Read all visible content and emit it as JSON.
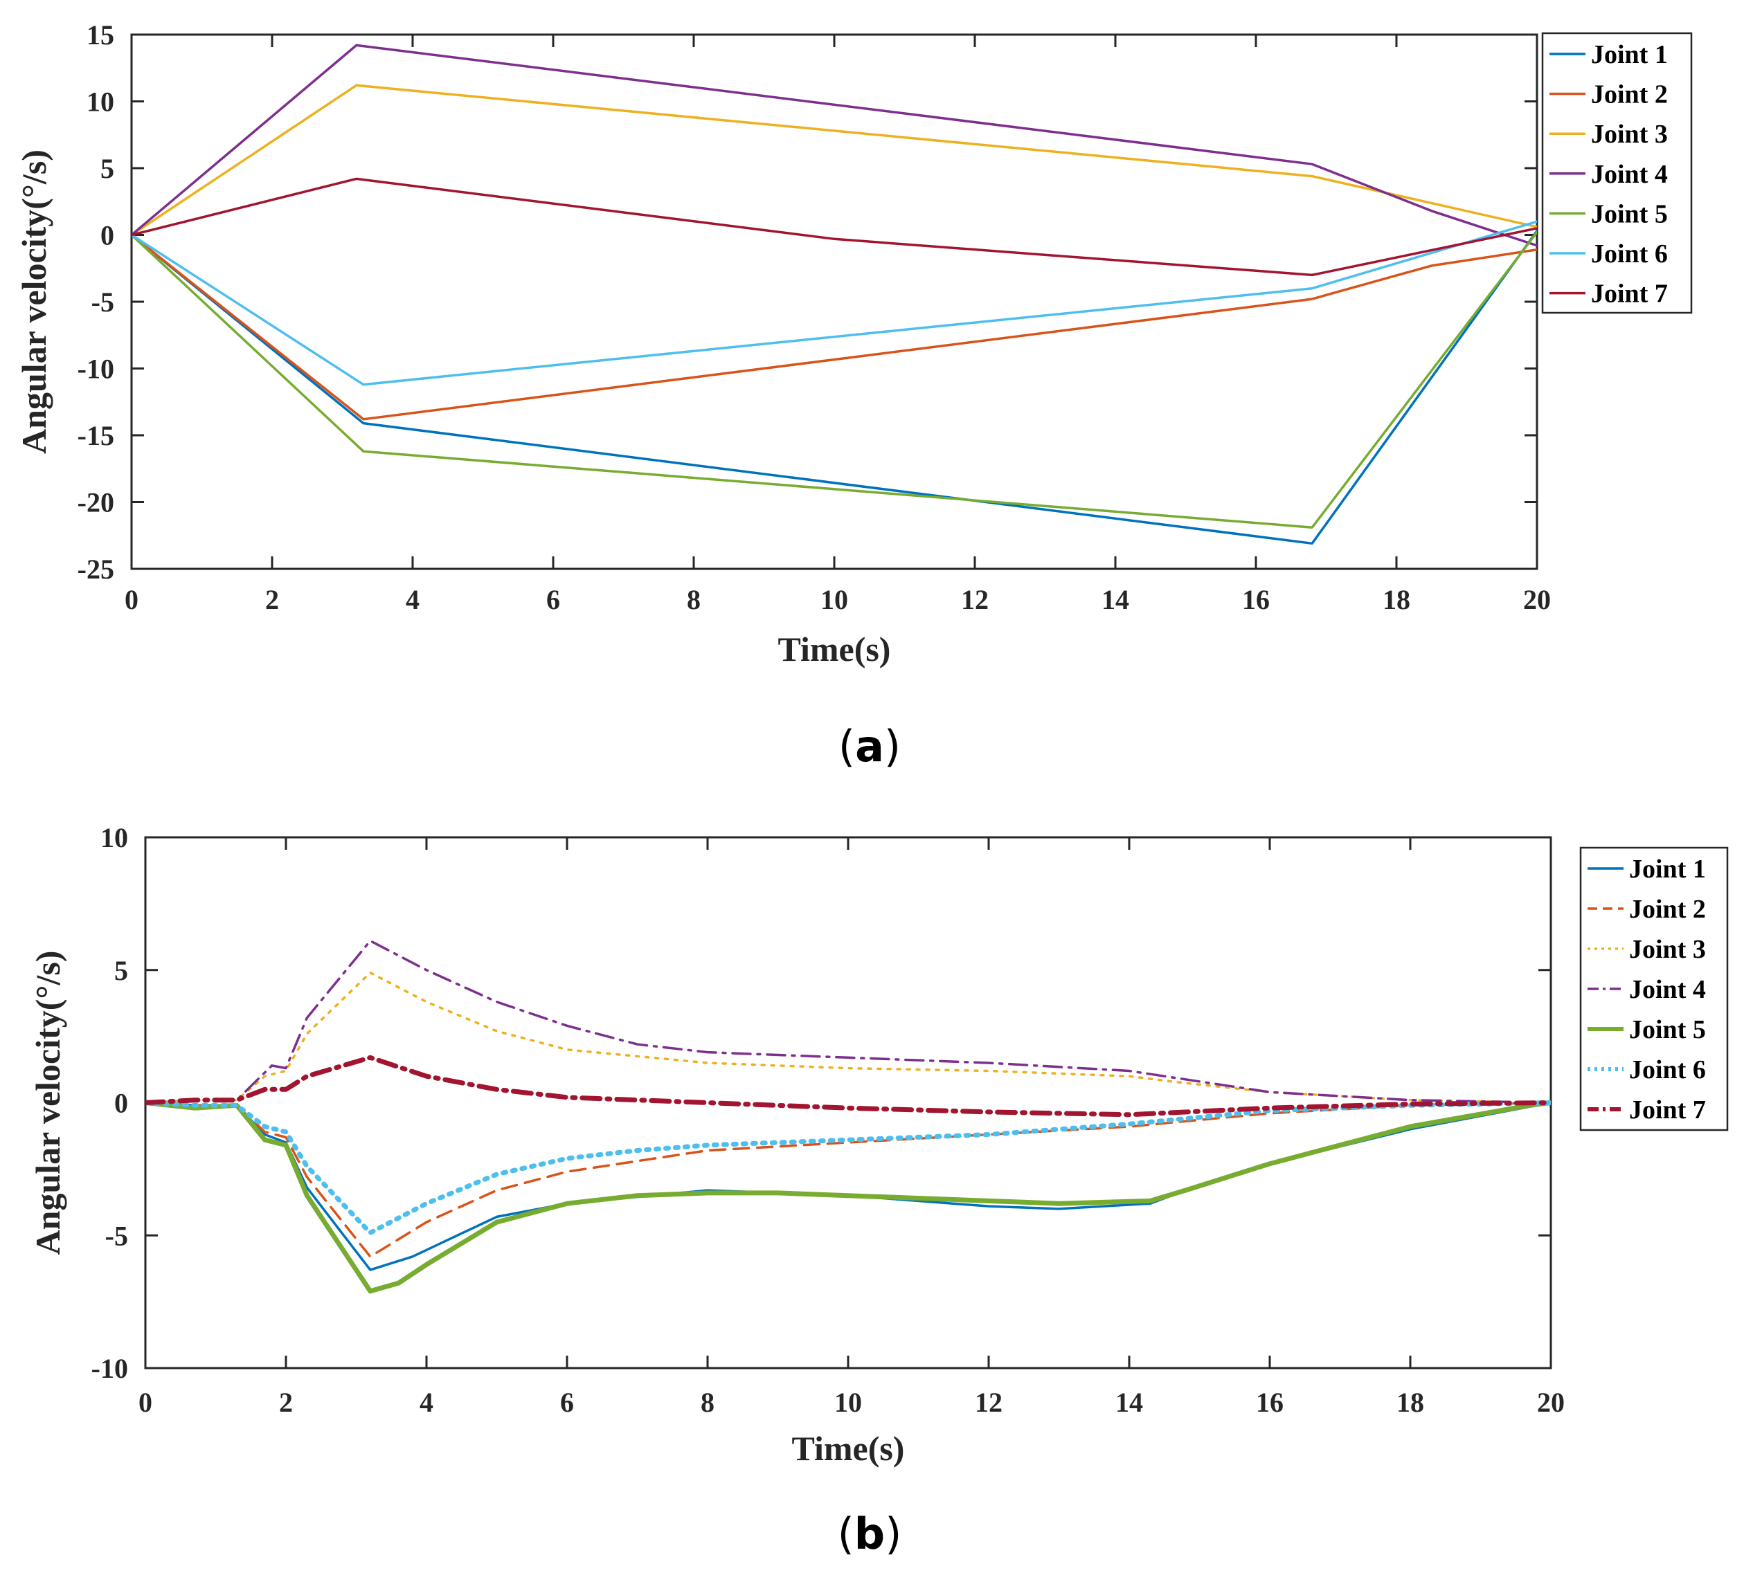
{
  "chart_data": [
    {
      "type": "line",
      "caption": "a",
      "title": "",
      "xlabel": "Time(s)",
      "ylabel": "Angular velocity(°/s)",
      "xlim": [
        0,
        20
      ],
      "ylim": [
        -25,
        15
      ],
      "xticks": [
        0,
        2,
        4,
        6,
        8,
        10,
        12,
        14,
        16,
        18,
        20
      ],
      "yticks": [
        -25,
        -20,
        -15,
        -10,
        -5,
        0,
        5,
        10,
        15
      ],
      "xtick_labels": [
        "0",
        "2",
        "4",
        "6",
        "8",
        "10",
        "12",
        "14",
        "16",
        "18",
        "20"
      ],
      "ytick_labels": [
        "-25",
        "-20",
        "-15",
        "-10",
        "-5",
        "0",
        "5",
        "10",
        "15"
      ],
      "grid": false,
      "legend_position": "outside-top-right",
      "series": [
        {
          "name": "Joint 1",
          "color": "#0072BD",
          "style": "solid",
          "width": 3.5,
          "x": [
            0,
            3.3,
            16.8,
            20
          ],
          "y": [
            0,
            -14.1,
            -23.1,
            0.3
          ]
        },
        {
          "name": "Joint 2",
          "color": "#D95319",
          "style": "solid",
          "width": 3.5,
          "x": [
            0,
            3.3,
            16.8,
            18.5,
            20
          ],
          "y": [
            0,
            -13.8,
            -4.8,
            -2.3,
            -1.1
          ]
        },
        {
          "name": "Joint 3",
          "color": "#EDB120",
          "style": "solid",
          "width": 3.5,
          "x": [
            0,
            3.2,
            16.8,
            20
          ],
          "y": [
            0,
            11.2,
            4.4,
            0.6
          ]
        },
        {
          "name": "Joint 4",
          "color": "#7E2F8E",
          "style": "solid",
          "width": 3.5,
          "x": [
            0,
            3.2,
            16.8,
            18.5,
            20
          ],
          "y": [
            0,
            14.2,
            5.3,
            1.8,
            -0.8
          ]
        },
        {
          "name": "Joint 5",
          "color": "#77AC30",
          "style": "solid",
          "width": 3.5,
          "x": [
            0,
            3.3,
            16.8,
            20
          ],
          "y": [
            0,
            -16.2,
            -21.9,
            0.2
          ]
        },
        {
          "name": "Joint 6",
          "color": "#4DBEEE",
          "style": "solid",
          "width": 3.5,
          "x": [
            0,
            3.3,
            16.8,
            20
          ],
          "y": [
            0,
            -11.2,
            -4.0,
            1.0
          ]
        },
        {
          "name": "Joint 7",
          "color": "#A2142F",
          "style": "solid",
          "width": 3.5,
          "x": [
            0,
            3.2,
            10,
            16.8,
            20
          ],
          "y": [
            0,
            4.2,
            -0.3,
            -3.0,
            0.5
          ]
        }
      ]
    },
    {
      "type": "line",
      "caption": "b",
      "title": "",
      "xlabel": "Time(s)",
      "ylabel": "Angular velocity(°/s)",
      "xlim": [
        0,
        20
      ],
      "ylim": [
        -10,
        10
      ],
      "xticks": [
        0,
        2,
        4,
        6,
        8,
        10,
        12,
        14,
        16,
        18,
        20
      ],
      "yticks": [
        -10,
        -5,
        0,
        5,
        10
      ],
      "xtick_labels": [
        "0",
        "2",
        "4",
        "6",
        "8",
        "10",
        "12",
        "14",
        "16",
        "18",
        "20"
      ],
      "ytick_labels": [
        "-10",
        "-5",
        "0",
        "5",
        "10"
      ],
      "grid": false,
      "legend_position": "outside-top-right",
      "series": [
        {
          "name": "Joint 1",
          "color": "#0072BD",
          "style": "solid",
          "width": 3.5,
          "x": [
            0,
            0.7,
            1.3,
            1.7,
            2.0,
            2.3,
            3.2,
            3.8,
            5.0,
            6.0,
            8.0,
            10.0,
            12.0,
            13.0,
            14.3,
            14.8,
            16.0,
            18.0,
            20.0
          ],
          "y": [
            0,
            -0.1,
            -0.1,
            -1.2,
            -1.5,
            -3.2,
            -6.3,
            -5.8,
            -4.3,
            -3.8,
            -3.3,
            -3.5,
            -3.9,
            -4.0,
            -3.8,
            -3.3,
            -2.3,
            -1.0,
            0
          ]
        },
        {
          "name": "Joint 2",
          "color": "#D95319",
          "style": "dashed",
          "width": 3.5,
          "x": [
            0,
            0.7,
            1.3,
            1.7,
            2.0,
            2.3,
            3.2,
            4.0,
            5.0,
            6.0,
            8.0,
            10.0,
            12.0,
            14.0,
            16.0,
            18.0,
            20.0
          ],
          "y": [
            0,
            -0.1,
            -0.1,
            -1.1,
            -1.3,
            -2.8,
            -5.8,
            -4.5,
            -3.3,
            -2.6,
            -1.8,
            -1.5,
            -1.2,
            -0.9,
            -0.4,
            -0.1,
            0
          ]
        },
        {
          "name": "Joint 3",
          "color": "#EDB120",
          "style": "dotted",
          "width": 3.5,
          "x": [
            0,
            0.7,
            1.3,
            1.7,
            2.0,
            2.3,
            3.2,
            4.0,
            5.0,
            6.0,
            8.0,
            10.0,
            12.0,
            14.0,
            14.6,
            16.0,
            18.0,
            20.0
          ],
          "y": [
            0,
            0.1,
            0.1,
            1.0,
            1.2,
            2.6,
            4.9,
            3.8,
            2.7,
            2.0,
            1.5,
            1.3,
            1.2,
            1.0,
            0.8,
            0.4,
            0.1,
            0
          ]
        },
        {
          "name": "Joint 4",
          "color": "#7E2F8E",
          "style": "dashdot",
          "width": 3.5,
          "x": [
            0,
            0.7,
            1.3,
            1.8,
            2.0,
            2.3,
            3.2,
            4.0,
            5.0,
            6.0,
            7.0,
            8.0,
            10.0,
            12.0,
            14.0,
            14.5,
            16.0,
            18.0,
            20.0
          ],
          "y": [
            0,
            0.1,
            0.1,
            1.4,
            1.3,
            3.2,
            6.1,
            5.0,
            3.8,
            2.9,
            2.2,
            1.9,
            1.7,
            1.5,
            1.2,
            1.0,
            0.4,
            0.1,
            0
          ]
        },
        {
          "name": "Joint 5",
          "color": "#77AC30",
          "style": "solid",
          "width": 7,
          "x": [
            0,
            0.7,
            1.3,
            1.7,
            2.0,
            2.3,
            3.2,
            3.6,
            4.0,
            5.0,
            6.0,
            7.0,
            8.0,
            9.0,
            10.0,
            12.0,
            13.0,
            14.3,
            14.8,
            16.0,
            18.0,
            19.7,
            20.0
          ],
          "y": [
            0,
            -0.2,
            -0.1,
            -1.4,
            -1.6,
            -3.5,
            -7.1,
            -6.8,
            -6.1,
            -4.5,
            -3.8,
            -3.5,
            -3.4,
            -3.4,
            -3.5,
            -3.7,
            -3.8,
            -3.7,
            -3.3,
            -2.3,
            -0.9,
            -0.1,
            0
          ]
        },
        {
          "name": "Joint 6",
          "color": "#4DBEEE",
          "style": "dotted",
          "width": 7,
          "x": [
            0,
            0.7,
            1.3,
            1.7,
            2.0,
            2.3,
            3.2,
            4.0,
            5.0,
            6.0,
            7.0,
            8.0,
            10.0,
            12.0,
            14.0,
            16.0,
            18.0,
            20.0
          ],
          "y": [
            0,
            -0.1,
            -0.1,
            -0.9,
            -1.1,
            -2.4,
            -4.9,
            -3.8,
            -2.7,
            -2.1,
            -1.8,
            -1.6,
            -1.4,
            -1.2,
            -0.8,
            -0.3,
            -0.1,
            0
          ]
        },
        {
          "name": "Joint 7",
          "color": "#A2142F",
          "style": "dashdot",
          "width": 7,
          "x": [
            0,
            0.7,
            1.3,
            1.7,
            2.0,
            2.3,
            3.2,
            4.0,
            5.0,
            6.0,
            8.0,
            10.0,
            12.0,
            14.0,
            16.0,
            18.0,
            20.0
          ],
          "y": [
            0,
            0.1,
            0.1,
            0.5,
            0.5,
            1.0,
            1.7,
            1.0,
            0.5,
            0.2,
            0.0,
            -0.2,
            -0.35,
            -0.45,
            -0.2,
            -0.05,
            0
          ]
        }
      ]
    }
  ]
}
